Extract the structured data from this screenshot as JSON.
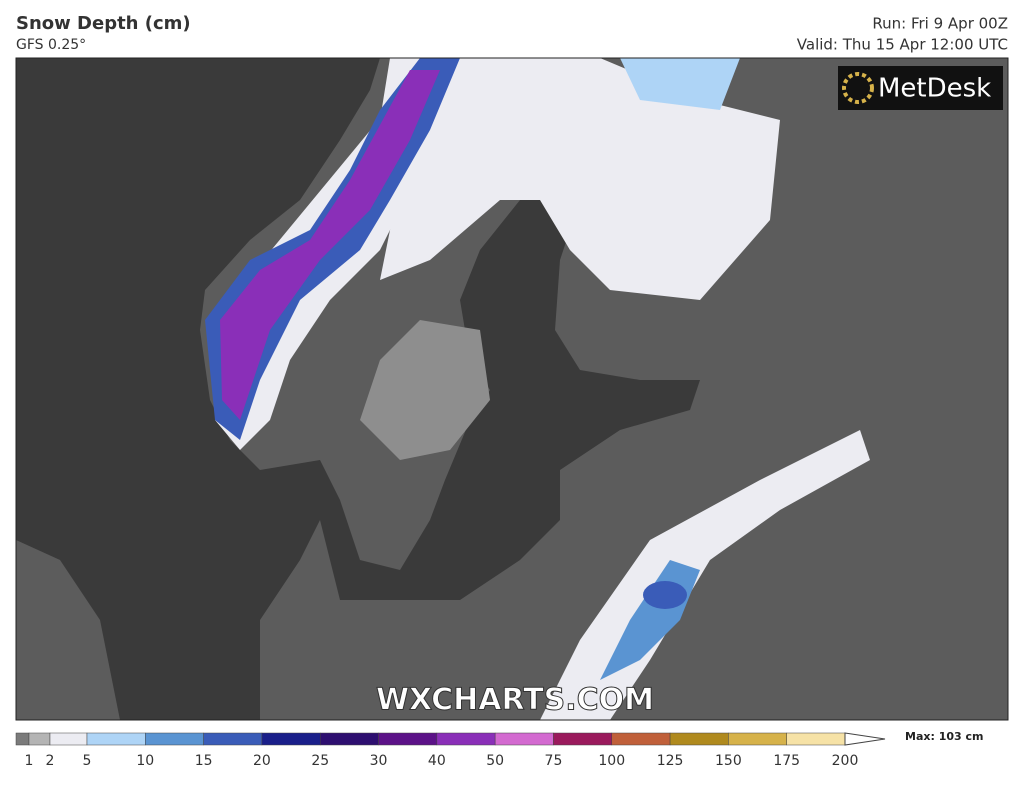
{
  "header": {
    "title": "Snow Depth (cm)",
    "subtitle": "GFS 0.25°",
    "run": "Run: Fri 9 Apr 00Z",
    "valid": "Valid: Thu 15 Apr 12:00 UTC"
  },
  "logo": "MetDesk",
  "watermark": "WXCHARTS.COM",
  "legend": {
    "ticks": [
      1,
      2,
      5,
      10,
      15,
      20,
      25,
      30,
      40,
      50,
      75,
      100,
      125,
      150,
      175,
      200
    ],
    "colors": [
      "#7b7b7b",
      "#b4b4b4",
      "#ececf2",
      "#aed4f6",
      "#5a94d2",
      "#3a5cb8",
      "#1a1f8a",
      "#2e0f70",
      "#5c1288",
      "#8a2fb8",
      "#d36ad0",
      "#9a1a5c",
      "#c0603a",
      "#b08a1e",
      "#d6b24a",
      "#f6e2a6"
    ],
    "max": "Max: 103 cm"
  }
}
